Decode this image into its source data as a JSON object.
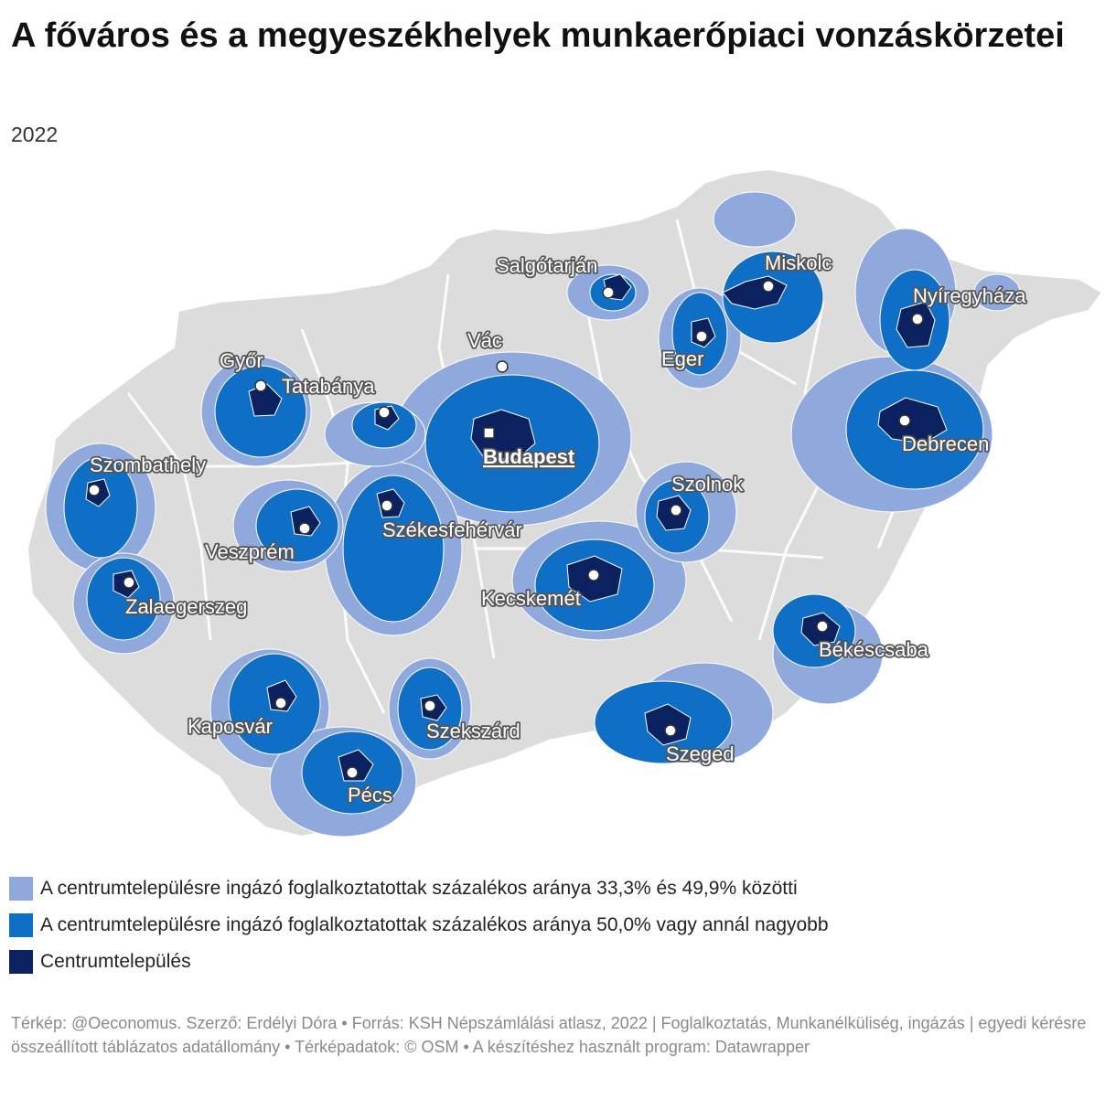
{
  "title": "A főváros és a megyeszékhelyek munkaerőpiaci vonzáskörzetei",
  "subtitle": "2022",
  "colors": {
    "background_area": "#dcdcdc",
    "low_share": "#8fa9dd",
    "high_share": "#0f6fc6",
    "centre": "#0b2160",
    "border": "#ffffff"
  },
  "legend": [
    {
      "label": "A centrumtelepülésre ingázó foglalkoztatottak százalékos aránya 33,3% és 49,9% közötti",
      "color": "#8fa9dd"
    },
    {
      "label": "A centrumtelepülésre ingázó foglalkoztatottak százalékos aránya 50,0% vagy annál nagyobb",
      "color": "#0f6fc6"
    },
    {
      "label": "Centrumtelepülés",
      "color": "#0b2160"
    }
  ],
  "cities": [
    {
      "name": "Salgótarján"
    },
    {
      "name": "Miskolc"
    },
    {
      "name": "Nyíregyháza"
    },
    {
      "name": "Vác"
    },
    {
      "name": "Eger"
    },
    {
      "name": "Győr"
    },
    {
      "name": "Tatabánya"
    },
    {
      "name": "Budapest",
      "capital": true
    },
    {
      "name": "Debrecen"
    },
    {
      "name": "Szombathely"
    },
    {
      "name": "Szolnok"
    },
    {
      "name": "Székesfehérvár"
    },
    {
      "name": "Veszprém"
    },
    {
      "name": "Kecskemét"
    },
    {
      "name": "Zalaegerszeg"
    },
    {
      "name": "Békéscsaba"
    },
    {
      "name": "Kaposvár"
    },
    {
      "name": "Szekszárd"
    },
    {
      "name": "Szeged"
    },
    {
      "name": "Pécs"
    }
  ],
  "footer": "Térkép: @Oeconomus. Szerző: Erdélyi Dóra • Forrás: KSH Népszámlálási atlasz, 2022 | Foglalkoztatás, Munkanélküliség, ingázás | egyedi kérésre összeállított táblázatos adatállomány • Térképadatok: © OSM  • A készítéshez használt program: Datawrapper"
}
